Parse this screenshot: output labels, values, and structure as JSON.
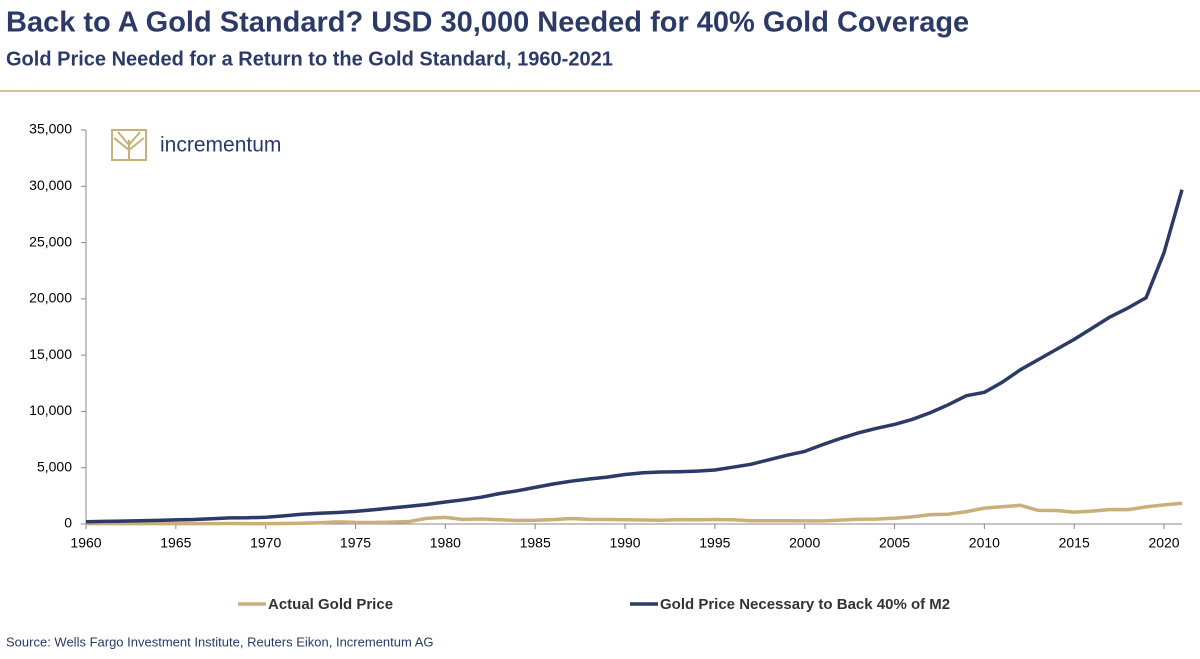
{
  "chart_data": {
    "type": "line",
    "title": "Back to A Gold Standard? USD 30,000 Needed for 40% Gold Coverage",
    "subtitle": "Gold Price Needed for a Return to the Gold Standard, 1960-2021",
    "logo_text": "incrementum",
    "source": "Source: Wells Fargo Investment Institute, Reuters Eikon, Incrementum AG",
    "x": [
      1960,
      1961,
      1962,
      1963,
      1964,
      1965,
      1966,
      1967,
      1968,
      1969,
      1970,
      1971,
      1972,
      1973,
      1974,
      1975,
      1976,
      1977,
      1978,
      1979,
      1980,
      1981,
      1982,
      1983,
      1984,
      1985,
      1986,
      1987,
      1988,
      1989,
      1990,
      1991,
      1992,
      1993,
      1994,
      1995,
      1996,
      1997,
      1998,
      1999,
      2000,
      2001,
      2002,
      2003,
      2004,
      2005,
      2006,
      2007,
      2008,
      2009,
      2010,
      2011,
      2012,
      2013,
      2014,
      2015,
      2016,
      2017,
      2018,
      2019,
      2020,
      2021
    ],
    "series": [
      {
        "name": "Actual Gold Price",
        "color": "#c9b07a",
        "values": [
          35,
          35,
          35,
          35,
          35,
          35,
          35,
          35,
          41,
          35,
          37,
          44,
          65,
          112,
          187,
          140,
          135,
          165,
          226,
          512,
          590,
          400,
          448,
          382,
          309,
          327,
          391,
          487,
          410,
          401,
          386,
          353,
          333,
          391,
          383,
          387,
          369,
          290,
          287,
          290,
          272,
          277,
          343,
          415,
          438,
          513,
          632,
          834,
          870,
          1104,
          1410,
          1531,
          1664,
          1205,
          1199,
          1060,
          1146,
          1291,
          1279,
          1517,
          1700,
          1850
        ]
      },
      {
        "name": "Gold Price Necessary to Back 40% of M2",
        "color": "#2b3a67",
        "values": [
          200,
          230,
          260,
          290,
          320,
          360,
          400,
          470,
          540,
          550,
          600,
          720,
          860,
          960,
          1020,
          1120,
          1260,
          1420,
          1580,
          1740,
          1950,
          2150,
          2380,
          2700,
          2950,
          3250,
          3550,
          3800,
          4000,
          4170,
          4400,
          4550,
          4620,
          4650,
          4700,
          4800,
          5050,
          5300,
          5700,
          6100,
          6450,
          7050,
          7600,
          8100,
          8500,
          8850,
          9300,
          9900,
          10600,
          11400,
          11700,
          12600,
          13700,
          14600,
          15500,
          16400,
          17400,
          18400,
          19200,
          20100,
          24100,
          29700
        ]
      }
    ],
    "xlim": [
      1960,
      2021
    ],
    "xticks": [
      1960,
      1965,
      1970,
      1975,
      1980,
      1985,
      1990,
      1995,
      2000,
      2005,
      2010,
      2015,
      2020
    ],
    "ylim": [
      0,
      35000
    ],
    "yticks": [
      0,
      {
        "value": 5000,
        "label": "5,000"
      },
      {
        "value": 10000,
        "label": "10,000"
      },
      {
        "value": 15000,
        "label": "15,000"
      },
      {
        "value": 20000,
        "label": "20,000"
      },
      {
        "value": 25000,
        "label": "25,000"
      },
      {
        "value": 30000,
        "label": "30,000"
      },
      {
        "value": 35000,
        "label": "35,000"
      }
    ],
    "grid": false
  }
}
